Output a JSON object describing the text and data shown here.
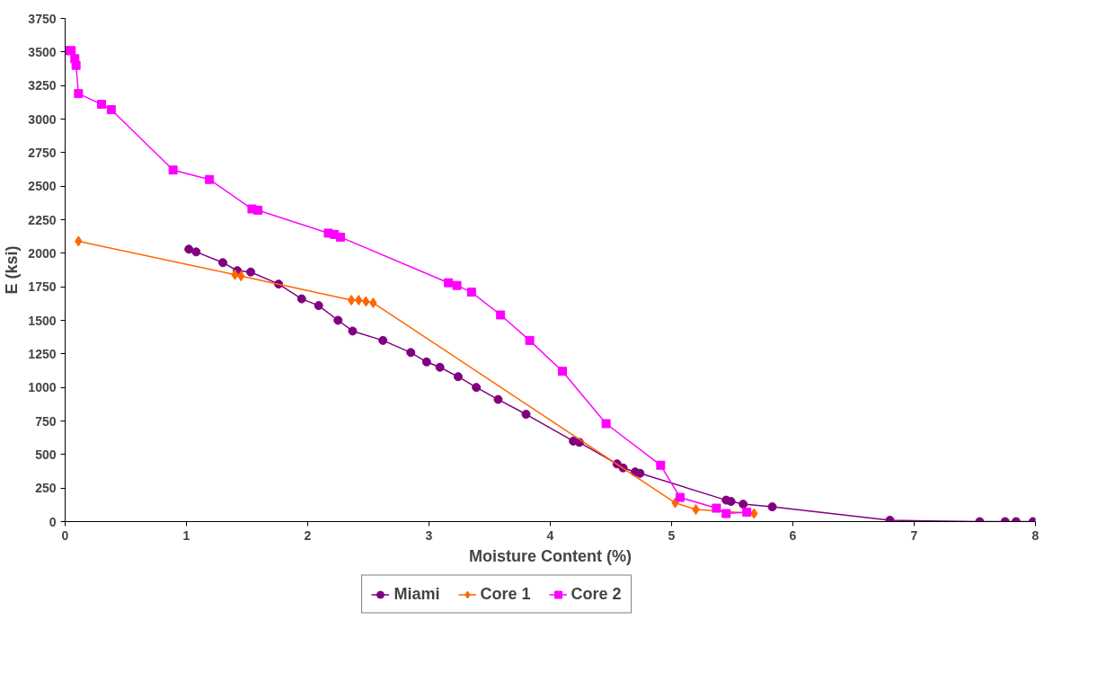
{
  "chart_data": {
    "type": "line",
    "xlabel": "Moisture Content (%)",
    "ylabel": "E (ksi)",
    "xlim": [
      0,
      8
    ],
    "ylim": [
      0,
      3750
    ],
    "xticks": [
      0,
      1,
      2,
      3,
      4,
      5,
      6,
      7,
      8
    ],
    "yticks": [
      0,
      250,
      500,
      750,
      1000,
      1250,
      1500,
      1750,
      2000,
      2250,
      2500,
      2750,
      3000,
      3250,
      3500,
      3750
    ],
    "grid": false,
    "legend": "bottom",
    "series": [
      {
        "name": "Miami",
        "color": "#800080",
        "marker": "circle",
        "x": [
          1.02,
          1.08,
          1.3,
          1.42,
          1.53,
          1.76,
          1.95,
          2.09,
          2.25,
          2.37,
          2.62,
          2.85,
          2.98,
          3.09,
          3.24,
          3.39,
          3.57,
          3.8,
          4.19,
          4.24,
          4.55,
          4.6,
          4.7,
          4.74,
          5.45,
          5.49,
          5.59,
          5.83,
          6.8,
          7.54,
          7.75,
          7.84,
          7.98
        ],
        "values": [
          2030,
          2010,
          1930,
          1870,
          1860,
          1770,
          1660,
          1610,
          1500,
          1420,
          1350,
          1260,
          1190,
          1150,
          1080,
          1000,
          910,
          800,
          600,
          590,
          430,
          400,
          370,
          360,
          160,
          150,
          130,
          110,
          10,
          0,
          0,
          0,
          0
        ]
      },
      {
        "name": "Core 1",
        "color": "#ff6600",
        "marker": "diamond",
        "x": [
          0.11,
          1.4,
          1.45,
          2.36,
          2.42,
          2.48,
          2.54,
          5.03,
          5.2,
          5.68
        ],
        "values": [
          2090,
          1840,
          1830,
          1650,
          1650,
          1640,
          1630,
          140,
          90,
          60
        ]
      },
      {
        "name": "Core 2",
        "color": "#ff00ff",
        "marker": "square",
        "x": [
          0.0,
          0.05,
          0.08,
          0.09,
          0.11,
          0.3,
          0.38,
          0.89,
          1.19,
          1.54,
          1.59,
          2.17,
          2.22,
          2.27,
          3.16,
          3.23,
          3.35,
          3.59,
          3.83,
          4.1,
          4.46,
          4.91,
          5.07,
          5.37,
          5.45,
          5.62
        ],
        "values": [
          3510,
          3510,
          3450,
          3400,
          3190,
          3110,
          3070,
          2620,
          2550,
          2330,
          2320,
          2150,
          2140,
          2120,
          1780,
          1760,
          1710,
          1540,
          1350,
          1120,
          730,
          420,
          180,
          100,
          60,
          70
        ]
      }
    ]
  }
}
